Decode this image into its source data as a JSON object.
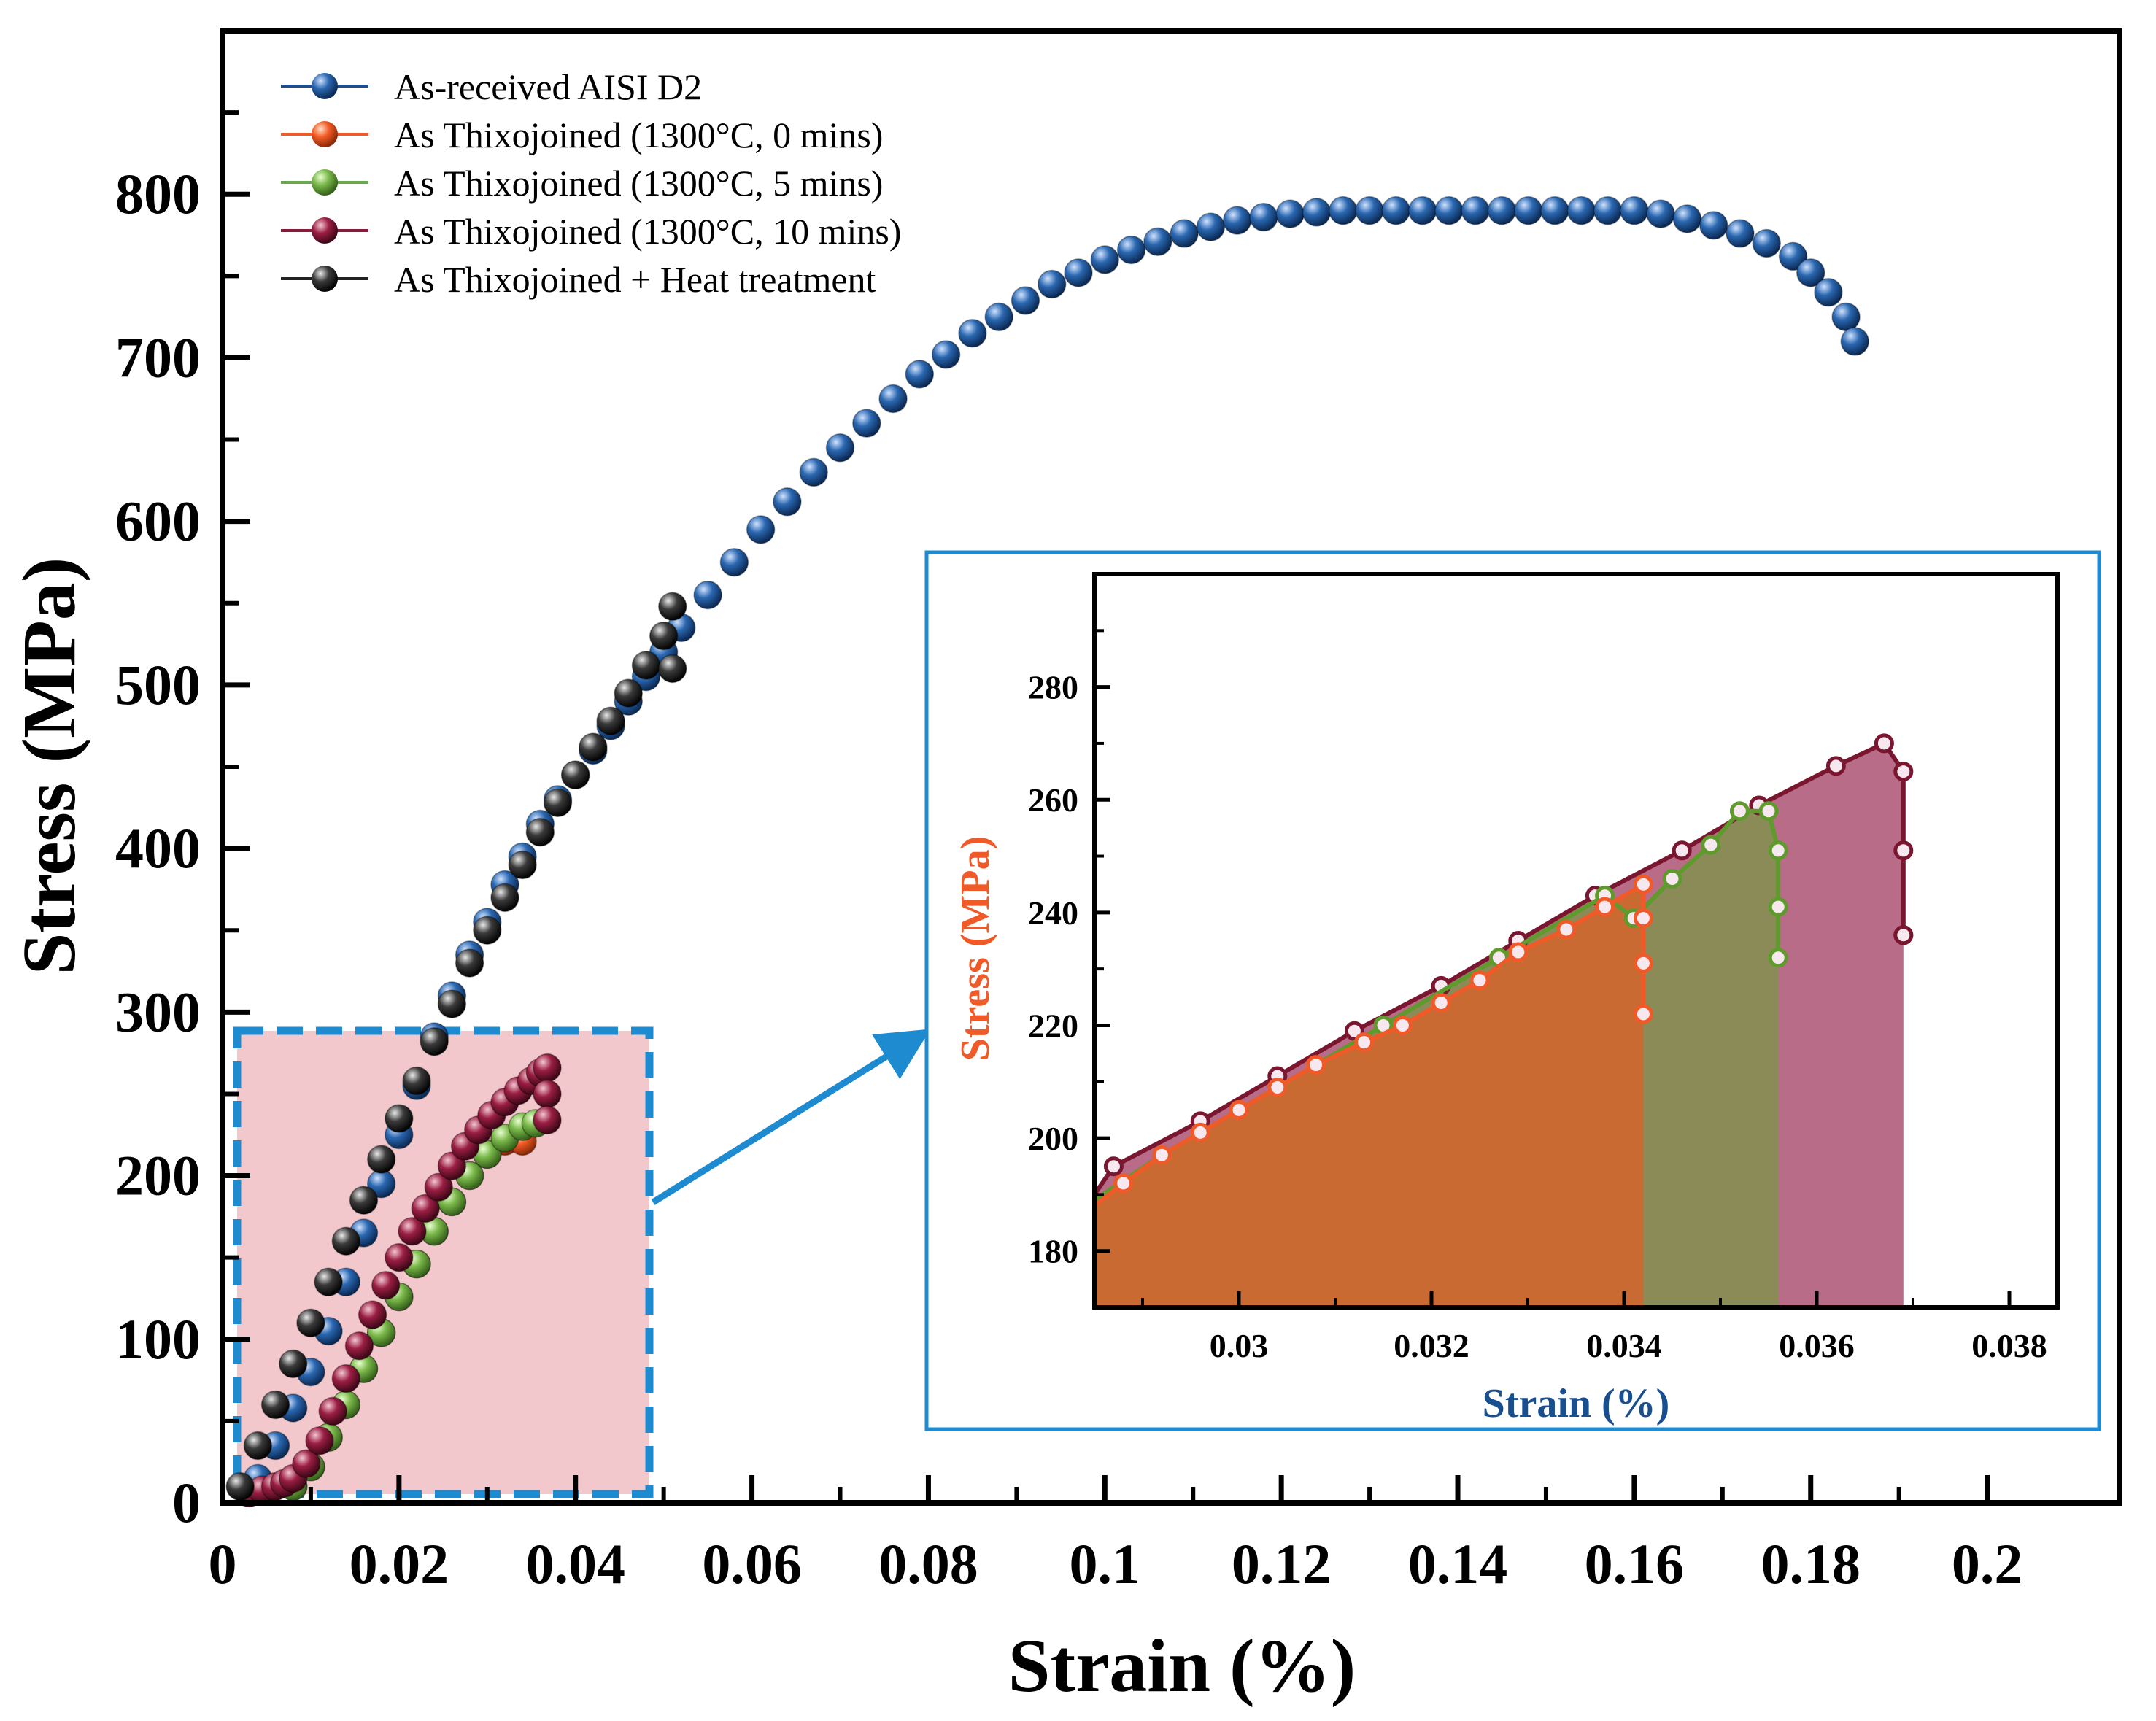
{
  "chart_data": [
    {
      "id": "main",
      "type": "scatter",
      "xlabel": "Strain (%)",
      "ylabel": "Stress (MPa)",
      "xlim": [
        0,
        0.215
      ],
      "ylim": [
        0,
        900
      ],
      "xticks": [
        0,
        0.02,
        0.04,
        0.06,
        0.08,
        0.1,
        0.12,
        0.14,
        0.16,
        0.18,
        0.2
      ],
      "xtick_labels": [
        "0",
        "0.02",
        "0.04",
        "0.06",
        "0.08",
        "0.1",
        "0.12",
        "0.14",
        "0.16",
        "0.18",
        "0.2"
      ],
      "yticks": [
        0,
        100,
        200,
        300,
        400,
        500,
        600,
        700,
        800
      ],
      "ytick_labels": [
        "0",
        "100",
        "200",
        "300",
        "400",
        "500",
        "600",
        "700",
        "800"
      ],
      "legend_position": "top-left",
      "series": [
        {
          "name": "As-received AISI D2",
          "color": "#1f4e8c",
          "x": [
            0.004,
            0.006,
            0.008,
            0.01,
            0.012,
            0.014,
            0.016,
            0.018,
            0.02,
            0.022,
            0.024,
            0.026,
            0.028,
            0.03,
            0.032,
            0.034,
            0.036,
            0.038,
            0.04,
            0.042,
            0.044,
            0.046,
            0.048,
            0.05,
            0.052,
            0.055,
            0.058,
            0.061,
            0.064,
            0.067,
            0.07,
            0.073,
            0.076,
            0.079,
            0.082,
            0.085,
            0.088,
            0.091,
            0.094,
            0.097,
            0.1,
            0.103,
            0.106,
            0.109,
            0.112,
            0.115,
            0.118,
            0.121,
            0.124,
            0.127,
            0.13,
            0.133,
            0.136,
            0.139,
            0.142,
            0.145,
            0.148,
            0.151,
            0.154,
            0.157,
            0.16,
            0.163,
            0.166,
            0.169,
            0.172,
            0.175,
            0.178,
            0.18,
            0.182,
            0.184,
            0.185
          ],
          "y": [
            15,
            35,
            58,
            80,
            105,
            135,
            165,
            195,
            225,
            255,
            285,
            310,
            335,
            355,
            378,
            395,
            415,
            430,
            445,
            460,
            475,
            490,
            505,
            520,
            535,
            555,
            575,
            595,
            612,
            630,
            645,
            660,
            675,
            690,
            702,
            715,
            725,
            735,
            745,
            752,
            760,
            766,
            771,
            776,
            780,
            784,
            786,
            788,
            789,
            790,
            790,
            790,
            790,
            790,
            790,
            790,
            790,
            790,
            790,
            790,
            790,
            788,
            785,
            781,
            776,
            770,
            762,
            752,
            740,
            725,
            710
          ]
        },
        {
          "name": "As Thixojoined (1300°C, 0 mins)",
          "color": "#f05a28",
          "x": [
            0.008,
            0.01,
            0.012,
            0.014,
            0.016,
            0.018,
            0.02,
            0.022,
            0.024,
            0.026,
            0.028,
            0.03,
            0.032,
            0.034
          ],
          "y": [
            10,
            22,
            40,
            60,
            82,
            104,
            126,
            146,
            166,
            184,
            200,
            213,
            221,
            221
          ]
        },
        {
          "name": "As Thixojoined (1300°C, 5 mins)",
          "color": "#6aa84f",
          "x": [
            0.008,
            0.01,
            0.012,
            0.014,
            0.016,
            0.018,
            0.02,
            0.022,
            0.024,
            0.026,
            0.028,
            0.03,
            0.032,
            0.034,
            0.0355
          ],
          "y": [
            10,
            22,
            40,
            60,
            82,
            104,
            126,
            146,
            166,
            184,
            200,
            213,
            223,
            230,
            232
          ]
        },
        {
          "name": "As Thixojoined (1300°C, 10 mins)",
          "color": "#8b1a3a",
          "x": [
            0.003,
            0.0045,
            0.006,
            0.007,
            0.008,
            0.0095,
            0.011,
            0.0125,
            0.014,
            0.0155,
            0.017,
            0.0185,
            0.02,
            0.0215,
            0.023,
            0.0245,
            0.026,
            0.0275,
            0.029,
            0.0305,
            0.032,
            0.0335,
            0.035,
            0.036,
            0.0368,
            0.0368,
            0.0368
          ],
          "y": [
            6,
            8,
            10,
            12,
            15,
            24,
            38,
            56,
            76,
            96,
            115,
            133,
            150,
            166,
            180,
            193,
            206,
            218,
            228,
            237,
            245,
            252,
            258,
            263,
            266,
            250,
            234
          ]
        },
        {
          "name": "As Thixojoined + Heat treatment",
          "color": "#222222",
          "x": [
            0.002,
            0.004,
            0.006,
            0.008,
            0.01,
            0.012,
            0.014,
            0.016,
            0.018,
            0.02,
            0.022,
            0.024,
            0.026,
            0.028,
            0.03,
            0.032,
            0.034,
            0.036,
            0.038,
            0.04,
            0.042,
            0.044,
            0.046,
            0.048,
            0.05,
            0.051,
            0.051
          ],
          "y": [
            10,
            35,
            60,
            85,
            110,
            135,
            160,
            185,
            210,
            235,
            258,
            282,
            305,
            330,
            350,
            370,
            390,
            410,
            428,
            445,
            462,
            478,
            495,
            512,
            530,
            548,
            510
          ]
        }
      ]
    },
    {
      "id": "inset",
      "type": "area",
      "xlabel": "Strain (%)",
      "ylabel": "Stress (MPa)",
      "xlim": [
        0.0285,
        0.0385
      ],
      "ylim": [
        170,
        300
      ],
      "xticks": [
        0.03,
        0.032,
        0.034,
        0.036,
        0.038
      ],
      "xtick_labels": [
        "0.03",
        "0.032",
        "0.034",
        "0.036",
        "0.038"
      ],
      "yticks": [
        180,
        200,
        220,
        240,
        260,
        280
      ],
      "ytick_labels": [
        "180",
        "200",
        "220",
        "240",
        "260",
        "280"
      ],
      "series": [
        {
          "name": "As Thixojoined (1300°C, 10 mins)",
          "line_color": "#7a1630",
          "fill_color": "#b86c87",
          "x": [
            0.0285,
            0.0287,
            0.0296,
            0.0304,
            0.0312,
            0.0321,
            0.0329,
            0.0337,
            0.0346,
            0.0354,
            0.0362,
            0.0367,
            0.0369,
            0.0369,
            0.0369,
            0.0369
          ],
          "y": [
            190,
            195,
            203,
            211,
            219,
            227,
            235,
            243,
            251,
            259,
            266,
            270,
            265,
            251,
            236,
            236
          ]
        },
        {
          "name": "As Thixojoined (1300°C, 5 mins)",
          "line_color": "#5e9a2c",
          "fill_color": "#8b8b58",
          "x": [
            0.0285,
            0.0292,
            0.0304,
            0.0315,
            0.0327,
            0.0338,
            0.0341,
            0.0345,
            0.0349,
            0.0352,
            0.0355,
            0.0356,
            0.0356,
            0.0356
          ],
          "y": [
            189,
            197,
            209,
            220,
            232,
            243,
            239,
            246,
            252,
            258,
            258,
            251,
            241,
            232
          ]
        },
        {
          "name": "As Thixojoined (1300°C, 0 mins)",
          "line_color": "#f05a28",
          "fill_color": "#c96a33",
          "x": [
            0.0285,
            0.0288,
            0.0292,
            0.0296,
            0.03,
            0.0304,
            0.0308,
            0.0313,
            0.0317,
            0.0321,
            0.0325,
            0.0329,
            0.0334,
            0.0338,
            0.0342,
            0.0342,
            0.0342,
            0.0342,
            0.0342
          ],
          "y": [
            188,
            192,
            197,
            201,
            205,
            209,
            213,
            217,
            220,
            224,
            228,
            233,
            237,
            241,
            245,
            239,
            231,
            222,
            222
          ]
        }
      ]
    }
  ]
}
